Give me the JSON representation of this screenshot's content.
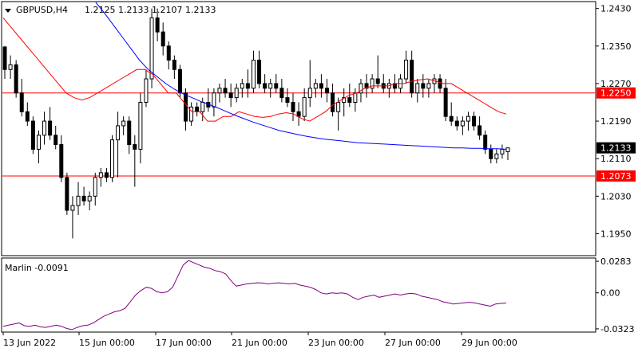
{
  "window": {
    "symbol_label": "GBPUSD,H4",
    "ohlc_label": "1.2125  1.2133  1.2107  1.2133"
  },
  "indicator": {
    "label": "Marlin -0.0091"
  },
  "colors": {
    "background": "#ffffff",
    "price_line": "#ff0000",
    "ma_blue": "#0000ff",
    "ma_red": "#ff0000",
    "oscillator": "#800080",
    "current_price_tag": "#000000"
  },
  "chart_data": [
    {
      "type": "candlestick",
      "title": "GBPUSD,H4",
      "ylim": [
        1.1905,
        1.2443
      ],
      "y_ticks": [
        "1.2430",
        "1.2350",
        "1.2270",
        "1.2190",
        "1.2110",
        "1.2030",
        "1.1950"
      ],
      "x_ticks": [
        "13 Jun 2022",
        "15 Jun 00:00",
        "17 Jun 00:00",
        "21 Jun 00:00",
        "23 Jun 00:00",
        "27 Jun 00:00",
        "29 Jun 00:00"
      ],
      "horizontal_levels": [
        {
          "value": 1.225,
          "label": "1.2250"
        },
        {
          "value": 1.2073,
          "label": "1.2073"
        }
      ],
      "current_price": {
        "value": 1.2133,
        "label": "1.2133"
      },
      "candles": [
        [
          1.2348,
          1.235,
          1.228,
          1.23
        ],
        [
          1.23,
          1.233,
          1.228,
          1.231
        ],
        [
          1.231,
          1.232,
          1.224,
          1.225
        ],
        [
          1.225,
          1.228,
          1.22,
          1.221
        ],
        [
          1.221,
          1.223,
          1.218,
          1.219
        ],
        [
          1.219,
          1.22,
          1.212,
          1.213
        ],
        [
          1.213,
          1.217,
          1.21,
          1.216
        ],
        [
          1.216,
          1.221,
          1.214,
          1.219
        ],
        [
          1.219,
          1.222,
          1.215,
          1.216
        ],
        [
          1.216,
          1.218,
          1.213,
          1.214
        ],
        [
          1.214,
          1.216,
          1.206,
          1.207
        ],
        [
          1.207,
          1.208,
          1.199,
          1.2
        ],
        [
          1.2,
          1.203,
          1.194,
          1.201
        ],
        [
          1.201,
          1.206,
          1.199,
          1.203
        ],
        [
          1.203,
          1.205,
          1.201,
          1.202
        ],
        [
          1.202,
          1.204,
          1.2,
          1.203
        ],
        [
          1.203,
          1.208,
          1.201,
          1.207
        ],
        [
          1.207,
          1.209,
          1.205,
          1.208
        ],
        [
          1.208,
          1.209,
          1.206,
          1.207
        ],
        [
          1.207,
          1.216,
          1.206,
          1.215
        ],
        [
          1.215,
          1.221,
          1.207,
          1.218
        ],
        [
          1.218,
          1.22,
          1.216,
          1.219
        ],
        [
          1.219,
          1.22,
          1.212,
          1.214
        ],
        [
          1.214,
          1.216,
          1.205,
          1.213
        ],
        [
          1.213,
          1.225,
          1.21,
          1.223
        ],
        [
          1.223,
          1.23,
          1.222,
          1.228
        ],
        [
          1.228,
          1.243,
          1.226,
          1.241
        ],
        [
          1.241,
          1.243,
          1.236,
          1.238
        ],
        [
          1.238,
          1.24,
          1.233,
          1.235
        ],
        [
          1.235,
          1.236,
          1.23,
          1.232
        ],
        [
          1.232,
          1.233,
          1.228,
          1.23
        ],
        [
          1.23,
          1.231,
          1.224,
          1.225
        ],
        [
          1.225,
          1.226,
          1.217,
          1.219
        ],
        [
          1.219,
          1.223,
          1.218,
          1.222
        ],
        [
          1.222,
          1.223,
          1.22,
          1.221
        ],
        [
          1.221,
          1.224,
          1.219,
          1.223
        ],
        [
          1.223,
          1.226,
          1.221,
          1.222
        ],
        [
          1.222,
          1.226,
          1.22,
          1.225
        ],
        [
          1.225,
          1.227,
          1.223,
          1.226
        ],
        [
          1.226,
          1.228,
          1.224,
          1.225
        ],
        [
          1.225,
          1.227,
          1.222,
          1.224
        ],
        [
          1.224,
          1.227,
          1.223,
          1.226
        ],
        [
          1.226,
          1.228,
          1.224,
          1.227
        ],
        [
          1.227,
          1.23,
          1.224,
          1.226
        ],
        [
          1.226,
          1.234,
          1.225,
          1.232
        ],
        [
          1.232,
          1.234,
          1.226,
          1.227
        ],
        [
          1.227,
          1.229,
          1.225,
          1.226
        ],
        [
          1.226,
          1.228,
          1.224,
          1.227
        ],
        [
          1.227,
          1.229,
          1.225,
          1.226
        ],
        [
          1.226,
          1.228,
          1.223,
          1.224
        ],
        [
          1.224,
          1.226,
          1.222,
          1.223
        ],
        [
          1.223,
          1.225,
          1.219,
          1.221
        ],
        [
          1.221,
          1.223,
          1.218,
          1.22
        ],
        [
          1.22,
          1.226,
          1.219,
          1.224
        ],
        [
          1.224,
          1.232,
          1.222,
          1.226
        ],
        [
          1.226,
          1.228,
          1.224,
          1.227
        ],
        [
          1.227,
          1.229,
          1.224,
          1.226
        ],
        [
          1.226,
          1.228,
          1.223,
          1.225
        ],
        [
          1.225,
          1.227,
          1.22,
          1.221
        ],
        [
          1.221,
          1.224,
          1.217,
          1.223
        ],
        [
          1.223,
          1.226,
          1.22,
          1.224
        ],
        [
          1.224,
          1.227,
          1.222,
          1.223
        ],
        [
          1.223,
          1.226,
          1.221,
          1.225
        ],
        [
          1.225,
          1.228,
          1.223,
          1.227
        ],
        [
          1.227,
          1.229,
          1.224,
          1.226
        ],
        [
          1.226,
          1.229,
          1.225,
          1.228
        ],
        [
          1.228,
          1.233,
          1.226,
          1.227
        ],
        [
          1.227,
          1.229,
          1.225,
          1.226
        ],
        [
          1.226,
          1.228,
          1.224,
          1.227
        ],
        [
          1.227,
          1.229,
          1.225,
          1.226
        ],
        [
          1.226,
          1.229,
          1.225,
          1.228
        ],
        [
          1.228,
          1.234,
          1.227,
          1.232
        ],
        [
          1.232,
          1.234,
          1.224,
          1.225
        ],
        [
          1.225,
          1.228,
          1.223,
          1.227
        ],
        [
          1.227,
          1.229,
          1.224,
          1.226
        ],
        [
          1.226,
          1.228,
          1.224,
          1.227
        ],
        [
          1.227,
          1.229,
          1.225,
          1.228
        ],
        [
          1.228,
          1.229,
          1.225,
          1.226
        ],
        [
          1.226,
          1.228,
          1.219,
          1.22
        ],
        [
          1.22,
          1.223,
          1.218,
          1.219
        ],
        [
          1.219,
          1.22,
          1.217,
          1.218
        ],
        [
          1.218,
          1.22,
          1.216,
          1.219
        ],
        [
          1.219,
          1.221,
          1.217,
          1.22
        ],
        [
          1.22,
          1.221,
          1.217,
          1.218
        ],
        [
          1.218,
          1.22,
          1.215,
          1.216
        ],
        [
          1.216,
          1.217,
          1.212,
          1.213
        ],
        [
          1.213,
          1.214,
          1.21,
          1.211
        ],
        [
          1.211,
          1.213,
          1.21,
          1.212
        ],
        [
          1.212,
          1.214,
          1.211,
          1.213
        ],
        [
          1.2125,
          1.2133,
          1.2107,
          1.2133
        ]
      ],
      "series": [
        {
          "name": "",
          "color": "#ff0000",
          "values": [
            1.241,
            1.239,
            1.237,
            1.235,
            1.233,
            1.231,
            1.229,
            1.227,
            1.225,
            1.224,
            1.2235,
            1.224,
            1.225,
            1.226,
            1.227,
            1.228,
            1.229,
            1.23,
            1.23,
            1.229,
            1.227,
            1.225,
            1.225,
            1.223,
            1.221,
            1.221,
            1.219,
            1.219,
            1.22,
            1.22,
            1.221,
            1.2205,
            1.22,
            1.2198,
            1.22,
            1.2205,
            1.2208,
            1.2205,
            1.2195,
            1.219,
            1.22,
            1.221,
            1.2225,
            1.2235,
            1.2245,
            1.225,
            1.226,
            1.2265,
            1.2265,
            1.2265,
            1.227,
            1.227,
            1.2275,
            1.2278,
            1.228,
            1.2275,
            1.227,
            1.227,
            1.226,
            1.225,
            1.224,
            1.223,
            1.222,
            1.221,
            1.2205
          ]
        },
        {
          "name": "",
          "color": "#0000ff",
          "values": [
            1.2443,
            1.242,
            1.2395,
            1.237,
            1.2345,
            1.232,
            1.23,
            1.2285,
            1.227,
            1.2258,
            1.2248,
            1.224,
            1.2232,
            1.2225,
            1.2218,
            1.221,
            1.2202,
            1.2195,
            1.2188,
            1.2182,
            1.2176,
            1.217,
            1.2166,
            1.2162,
            1.2158,
            1.2155,
            1.2152,
            1.215,
            1.2148,
            1.2146,
            1.2144,
            1.2143,
            1.2142,
            1.2141,
            1.214,
            1.2139,
            1.2138,
            1.2137,
            1.2136,
            1.2135,
            1.2134,
            1.2133,
            1.2133,
            1.2132,
            1.2132,
            1.2131,
            1.2131,
            1.213
          ]
        }
      ]
    },
    {
      "type": "line",
      "title": "Marlin -0.0091",
      "ylim": [
        -0.0345,
        0.0305
      ],
      "y_ticks": [
        "0.0283",
        "0.00",
        "-0.0323"
      ],
      "series": [
        {
          "name": "",
          "color": "#800080",
          "values": [
            -0.03,
            -0.029,
            -0.028,
            -0.027,
            -0.0295,
            -0.03,
            -0.029,
            -0.0305,
            -0.031,
            -0.03,
            -0.029,
            -0.03,
            -0.032,
            -0.033,
            -0.031,
            -0.0295,
            -0.029,
            -0.027,
            -0.024,
            -0.021,
            -0.019,
            -0.017,
            -0.016,
            -0.014,
            -0.008,
            -0.002,
            0.002,
            0.005,
            0.004,
            0.001,
            0.0,
            0.001,
            0.005,
            0.015,
            0.025,
            0.029,
            0.027,
            0.025,
            0.023,
            0.022,
            0.02,
            0.019,
            0.017,
            0.011,
            0.006,
            0.007,
            0.008,
            0.0085,
            0.009,
            0.0088,
            0.008,
            0.0085,
            0.009,
            0.0085,
            0.008,
            0.0085,
            0.007,
            0.006,
            0.005,
            0.003,
            0.0,
            -0.001,
            0.0,
            -0.0005,
            0.0,
            -0.001,
            -0.004,
            -0.006,
            -0.004,
            -0.003,
            -0.002,
            -0.004,
            -0.003,
            -0.002,
            -0.001,
            -0.002,
            -0.001,
            -0.0005,
            -0.001,
            -0.003,
            -0.004,
            -0.005,
            -0.006,
            -0.008,
            -0.009,
            -0.01,
            -0.0095,
            -0.009,
            -0.0085,
            -0.009,
            -0.01,
            -0.011,
            -0.012,
            -0.01,
            -0.0095,
            -0.0091
          ]
        }
      ]
    }
  ]
}
